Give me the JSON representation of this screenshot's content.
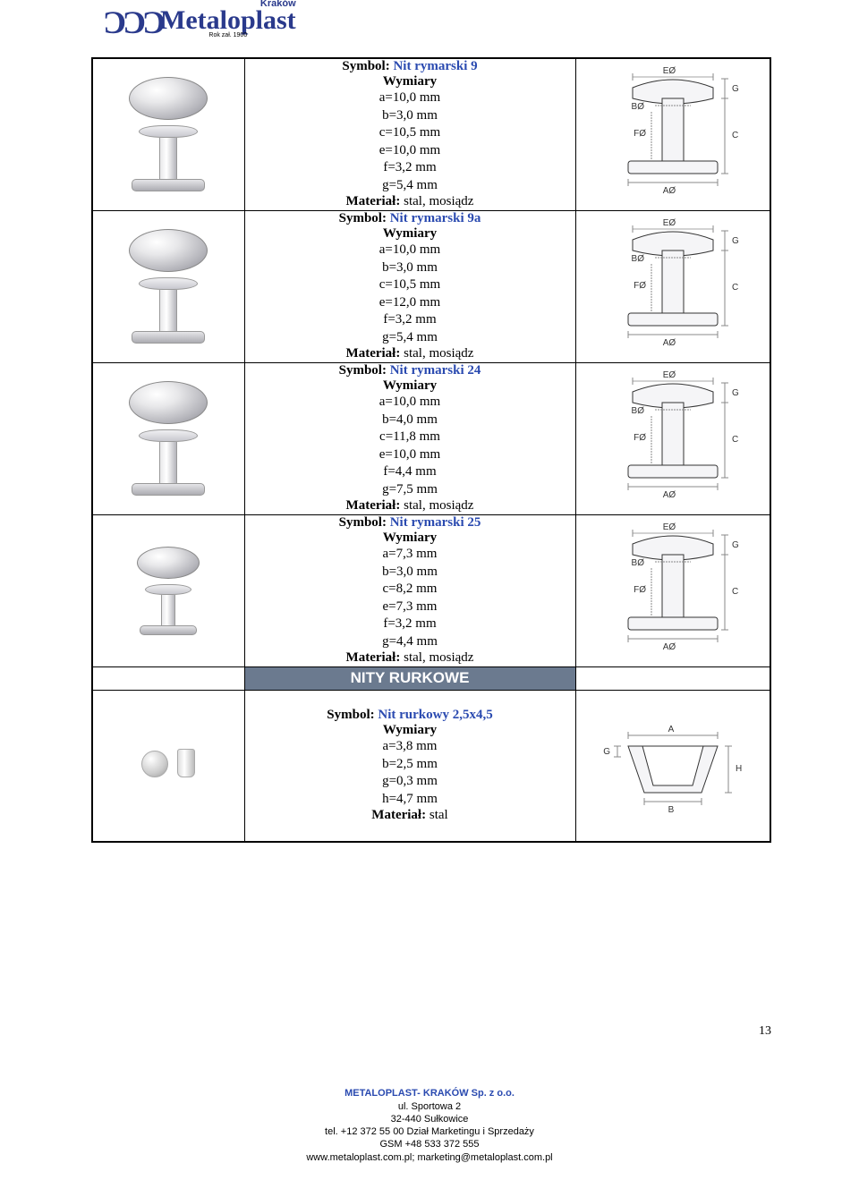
{
  "logo": {
    "krakow": "Kraków",
    "main": "Metaloplast",
    "sub": "Rok zał. 1900"
  },
  "products": [
    {
      "symbol_prefix": "Symbol: ",
      "symbol_name": "Nit rymarski 9",
      "wymiary_title": "Wymiary",
      "dims": [
        "a=10,0 mm",
        "b=3,0 mm",
        "c=10,5 mm",
        "e=10,0 mm",
        "f=3,2 mm",
        "g=5,4 mm"
      ],
      "material_label": "Materiał: ",
      "material": "stal, mosiądz",
      "diagram_labels": {
        "top": "EØ",
        "right_top": "G",
        "mid": "BØ",
        "stem_left": "FØ",
        "stem_right": "C",
        "base": "AØ"
      }
    },
    {
      "symbol_prefix": "Symbol: ",
      "symbol_name": "Nit rymarski 9a",
      "wymiary_title": "Wymiary",
      "dims": [
        "a=10,0 mm",
        "b=3,0 mm",
        "c=10,5 mm",
        "e=12,0 mm",
        "f=3,2 mm",
        "g=5,4 mm"
      ],
      "material_label": "Materiał: ",
      "material": "stal, mosiądz",
      "diagram_labels": {
        "top": "EØ",
        "right_top": "G",
        "mid": "BØ",
        "stem_left": "FØ",
        "stem_right": "C",
        "base": "AØ"
      }
    },
    {
      "symbol_prefix": "Symbol: ",
      "symbol_name": "Nit rymarski  24",
      "wymiary_title": "Wymiary",
      "dims": [
        "a=10,0 mm",
        "b=4,0 mm",
        "c=11,8 mm",
        "e=10,0 mm",
        "f=4,4 mm",
        "g=7,5 mm"
      ],
      "material_label": "Materiał: ",
      "material": "stal, mosiądz",
      "diagram_labels": {
        "top": "EØ",
        "right_top": "G",
        "mid": "BØ",
        "stem_left": "FØ",
        "stem_right": "C",
        "base": "AØ"
      }
    },
    {
      "symbol_prefix": "Symbol: ",
      "symbol_name": "Nit rymarski 25",
      "wymiary_title": "Wymiary",
      "dims": [
        "a=7,3 mm",
        "b=3,0 mm",
        "c=8,2 mm",
        "e=7,3 mm",
        "f=3,2 mm",
        "g=4,4 mm"
      ],
      "material_label": "Materiał: ",
      "material": "stal, mosiądz",
      "diagram_labels": {
        "top": "EØ",
        "right_top": "G",
        "mid": "BØ",
        "stem_left": "FØ",
        "stem_right": "C",
        "base": "AØ"
      }
    }
  ],
  "section_header": "NITY RURKOWE",
  "tube_product": {
    "symbol_prefix": "Symbol: ",
    "symbol_name": "Nit rurkowy 2,5x4,5",
    "wymiary_title": "Wymiary",
    "dims": [
      "a=3,8 mm",
      "b=2,5 mm",
      "g=0,3 mm",
      "h=4,7 mm"
    ],
    "material_label": "Materiał: ",
    "material": "stal",
    "diagram_labels": {
      "top": "A",
      "left": "G",
      "right": "H",
      "base": "B"
    }
  },
  "page_number": "13",
  "footer": {
    "company": "METALOPLAST- KRAKÓW Sp. z o.o.",
    "addr1": "ul. Sportowa 2",
    "addr2": "32-440 Sułkowice",
    "tel": "tel. +12 372 55 00  Dział Marketingu i Sprzedaży",
    "gsm": "GSM +48 533 372 555",
    "web": "www.metaloplast.com.pl; marketing@metaloplast.com.pl"
  },
  "colors": {
    "brand_blue": "#2a3a8c",
    "symbol_blue": "#2a4ab0",
    "section_bg": "#6b7a8f",
    "border": "#000000",
    "bg": "#ffffff"
  }
}
